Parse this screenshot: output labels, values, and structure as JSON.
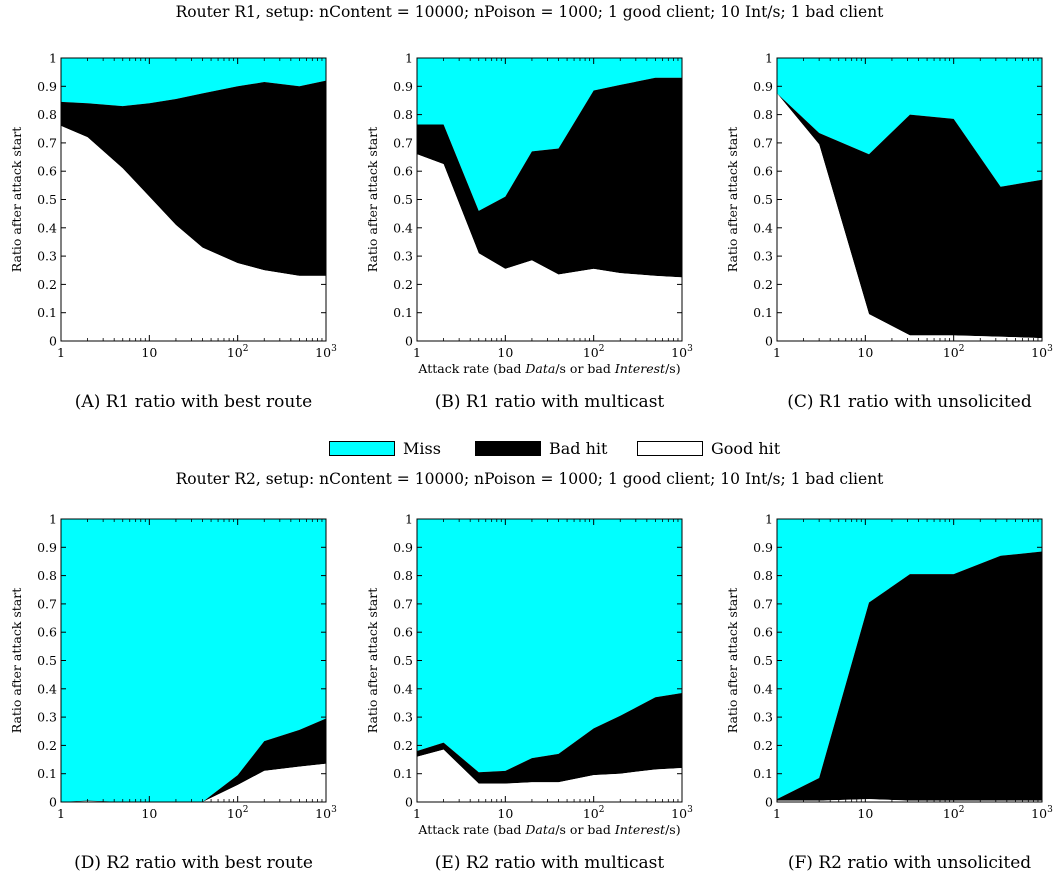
{
  "figure": {
    "title_top": "Router R1, setup: nContent = 10000; nPoison = 1000; 1 good client; 10 Int/s; 1 bad client",
    "title_bottom": "Router R2, setup: nContent = 10000; nPoison = 1000; 1 good client; 10 Int/s; 1 bad client",
    "legend": [
      {
        "label": "Miss",
        "color": "#00ffff"
      },
      {
        "label": "Bad hit",
        "color": "#000000"
      },
      {
        "label": "Good hit",
        "color": "#ffffff"
      }
    ]
  },
  "colors": {
    "miss": "#00ffff",
    "bad_hit": "#000000",
    "good_hit": "#ffffff"
  },
  "chart_data": [
    {
      "type": "area",
      "caption": "(A) R1 ratio with best route",
      "ylabel": "Ratio after attack start",
      "xlabel": "",
      "xscale": "log",
      "xlim": [
        1,
        1000
      ],
      "ylim": [
        0,
        1
      ],
      "xticks": [
        "1",
        "10",
        "10²",
        "10³"
      ],
      "yticks": [
        "0",
        "0.1",
        "0.2",
        "0.3",
        "0.4",
        "0.5",
        "0.6",
        "0.7",
        "0.8",
        "0.9",
        "1"
      ],
      "x": [
        1,
        2,
        5,
        10,
        20,
        40,
        100,
        200,
        500,
        1000
      ],
      "series": [
        {
          "name": "Good hit",
          "values": [
            0.76,
            0.72,
            0.61,
            0.51,
            0.41,
            0.33,
            0.275,
            0.25,
            0.23,
            0.23
          ]
        },
        {
          "name": "Bad hit",
          "values": [
            0.085,
            0.12,
            0.22,
            0.33,
            0.445,
            0.545,
            0.625,
            0.665,
            0.67,
            0.69
          ]
        },
        {
          "name": "Miss",
          "values": [
            0.155,
            0.16,
            0.17,
            0.16,
            0.145,
            0.125,
            0.1,
            0.085,
            0.1,
            0.08
          ]
        }
      ]
    },
    {
      "type": "area",
      "caption": "(B) R1 ratio with multicast",
      "ylabel": "Ratio after attack start",
      "xlabel": "Attack rate (bad Data/s or bad Interest/s)",
      "xscale": "log",
      "xlim": [
        1,
        1000
      ],
      "ylim": [
        0,
        1
      ],
      "xticks": [
        "1",
        "10",
        "10²",
        "10³"
      ],
      "yticks": [
        "0",
        "0.1",
        "0.2",
        "0.3",
        "0.4",
        "0.5",
        "0.6",
        "0.7",
        "0.8",
        "0.9",
        "1"
      ],
      "x": [
        1,
        2,
        5,
        10,
        20,
        40,
        100,
        200,
        500,
        1000
      ],
      "series": [
        {
          "name": "Good hit",
          "values": [
            0.66,
            0.625,
            0.31,
            0.255,
            0.285,
            0.235,
            0.255,
            0.24,
            0.23,
            0.225
          ]
        },
        {
          "name": "Bad hit",
          "values": [
            0.105,
            0.14,
            0.15,
            0.255,
            0.385,
            0.445,
            0.63,
            0.665,
            0.7,
            0.705
          ]
        },
        {
          "name": "Miss",
          "values": [
            0.235,
            0.235,
            0.54,
            0.49,
            0.33,
            0.32,
            0.115,
            0.095,
            0.07,
            0.07
          ]
        }
      ]
    },
    {
      "type": "area",
      "caption": "(C) R1 ratio with unsolicited",
      "ylabel": "Ratio after attack start",
      "xlabel": "",
      "xscale": "log",
      "xlim": [
        1,
        1000
      ],
      "ylim": [
        0,
        1
      ],
      "xticks": [
        "1",
        "10",
        "10²",
        "10³"
      ],
      "yticks": [
        "0",
        "0.1",
        "0.2",
        "0.3",
        "0.4",
        "0.5",
        "0.6",
        "0.7",
        "0.8",
        "0.9",
        "1"
      ],
      "x": [
        1,
        3,
        11,
        32,
        100,
        340,
        1000
      ],
      "series": [
        {
          "name": "Good hit",
          "values": [
            0.875,
            0.695,
            0.095,
            0.02,
            0.02,
            0.015,
            0.01
          ]
        },
        {
          "name": "Bad hit",
          "values": [
            0.0,
            0.04,
            0.565,
            0.78,
            0.765,
            0.53,
            0.56
          ]
        },
        {
          "name": "Miss",
          "values": [
            0.125,
            0.265,
            0.34,
            0.2,
            0.215,
            0.455,
            0.43
          ]
        }
      ]
    },
    {
      "type": "area",
      "caption": "(D) R2 ratio with best route",
      "ylabel": "Ratio after attack start",
      "xlabel": "",
      "xscale": "log",
      "xlim": [
        1,
        1000
      ],
      "ylim": [
        0,
        1
      ],
      "xticks": [
        "1",
        "10",
        "10²",
        "10³"
      ],
      "yticks": [
        "0",
        "0.1",
        "0.2",
        "0.3",
        "0.4",
        "0.5",
        "0.6",
        "0.7",
        "0.8",
        "0.9",
        "1"
      ],
      "x": [
        1,
        2,
        5,
        10,
        20,
        40,
        100,
        200,
        500,
        1000
      ],
      "series": [
        {
          "name": "Good hit",
          "values": [
            0.0,
            0.003,
            0.0,
            0.0,
            0.0,
            0.0,
            0.06,
            0.11,
            0.125,
            0.135
          ]
        },
        {
          "name": "Bad hit",
          "values": [
            0.0,
            0.002,
            0.0,
            0.0,
            0.0,
            0.0,
            0.035,
            0.105,
            0.13,
            0.16
          ]
        },
        {
          "name": "Miss",
          "values": [
            1.0,
            0.995,
            1.0,
            1.0,
            1.0,
            1.0,
            0.905,
            0.785,
            0.745,
            0.705
          ]
        }
      ]
    },
    {
      "type": "area",
      "caption": "(E) R2 ratio with multicast",
      "ylabel": "Ratio after attack start",
      "xlabel": "Attack rate (bad Data/s or bad Interest/s)",
      "xscale": "log",
      "xlim": [
        1,
        1000
      ],
      "ylim": [
        0,
        1
      ],
      "xticks": [
        "1",
        "10",
        "10²",
        "10³"
      ],
      "yticks": [
        "0",
        "0.1",
        "0.2",
        "0.3",
        "0.4",
        "0.5",
        "0.6",
        "0.7",
        "0.8",
        "0.9",
        "1"
      ],
      "x": [
        1,
        2,
        5,
        10,
        20,
        40,
        100,
        200,
        500,
        1000
      ],
      "series": [
        {
          "name": "Good hit",
          "values": [
            0.16,
            0.185,
            0.065,
            0.065,
            0.07,
            0.07,
            0.095,
            0.1,
            0.115,
            0.12
          ]
        },
        {
          "name": "Bad hit",
          "values": [
            0.02,
            0.025,
            0.04,
            0.045,
            0.085,
            0.1,
            0.165,
            0.205,
            0.255,
            0.265
          ]
        },
        {
          "name": "Miss",
          "values": [
            0.82,
            0.79,
            0.895,
            0.89,
            0.845,
            0.83,
            0.74,
            0.695,
            0.63,
            0.615
          ]
        }
      ]
    },
    {
      "type": "area",
      "caption": "(F) R2 ratio with unsolicited",
      "ylabel": "Ratio after attack start",
      "xlabel": "",
      "xscale": "log",
      "xlim": [
        1,
        1000
      ],
      "ylim": [
        0,
        1
      ],
      "xticks": [
        "1",
        "10",
        "10²",
        "10³"
      ],
      "yticks": [
        "0",
        "0.1",
        "0.2",
        "0.3",
        "0.4",
        "0.5",
        "0.6",
        "0.7",
        "0.8",
        "0.9",
        "1"
      ],
      "x": [
        1,
        3,
        11,
        32,
        100,
        340,
        1000
      ],
      "series": [
        {
          "name": "Good hit",
          "values": [
            0.005,
            0.005,
            0.01,
            0.005,
            0.005,
            0.005,
            0.005
          ]
        },
        {
          "name": "Bad hit",
          "values": [
            0.005,
            0.08,
            0.695,
            0.8,
            0.8,
            0.865,
            0.88
          ]
        },
        {
          "name": "Miss",
          "values": [
            0.99,
            0.915,
            0.295,
            0.195,
            0.195,
            0.13,
            0.115
          ]
        }
      ]
    }
  ]
}
